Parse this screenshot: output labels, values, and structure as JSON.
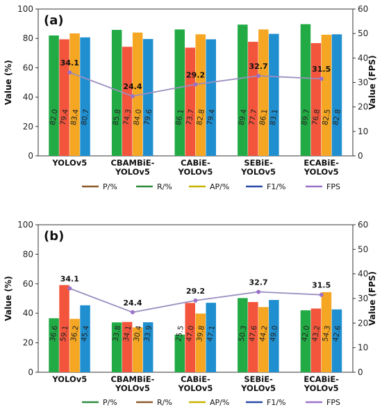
{
  "chart_data": [
    {
      "type": "bar",
      "panel_label": "(a)",
      "categories": [
        "YOLOv5",
        "CBAMBiE-YOLOv5",
        "CABiE-YOLOv5",
        "SEBiE-YOLOv5",
        "ECABiE-YOLOv5"
      ],
      "category_lines": [
        [
          "YOLOv5"
        ],
        [
          "CBAMBiE-",
          "YOLOv5"
        ],
        [
          "CABiE-",
          "YOLOv5"
        ],
        [
          "SEBiE-",
          "YOLOv5"
        ],
        [
          "ECABiE-",
          "YOLOv5"
        ]
      ],
      "series": [
        {
          "name": "P/%",
          "values": [
            82.0,
            85.8,
            86.1,
            89.4,
            89.7
          ]
        },
        {
          "name": "R/%",
          "values": [
            79.4,
            74.3,
            73.7,
            77.7,
            76.8
          ]
        },
        {
          "name": "AP/%",
          "values": [
            83.4,
            84.0,
            82.8,
            86.1,
            82.5
          ]
        },
        {
          "name": "F1/%",
          "values": [
            80.7,
            79.6,
            79.4,
            83.1,
            82.8
          ]
        }
      ],
      "bar_colors": [
        "#22aa44",
        "#f2553c",
        "#f5a623",
        "#1f8fd0"
      ],
      "legend": [
        {
          "name": "P/%",
          "color": "#8b5a2b"
        },
        {
          "name": "R/%",
          "color": "#2e8b3e"
        },
        {
          "name": "AP/%",
          "color": "#c8b400"
        },
        {
          "name": "F1/%",
          "color": "#2b4aa8"
        },
        {
          "name": "FPS",
          "color": "#9b72c8"
        }
      ],
      "fps": {
        "name": "FPS",
        "values": [
          34.1,
          24.4,
          29.2,
          32.7,
          31.5
        ]
      },
      "ylabel": "Value (%)",
      "y2label": "Value (FPS)",
      "ylim": [
        0,
        100
      ],
      "y2lim": [
        0,
        60
      ],
      "yticks": [
        "0",
        "20",
        "40",
        "60",
        "80",
        "100"
      ],
      "y2ticks": [
        "0",
        "10",
        "20",
        "30",
        "40",
        "50",
        "60"
      ],
      "legend_position": "bottom"
    },
    {
      "type": "bar",
      "panel_label": "(b)",
      "categories": [
        "YOLOv5",
        "CBAMBiE-YOLOv5",
        "CABiE-YOLOv5",
        "SEBiE-YOLOv5",
        "ECABiE-YOLOv5"
      ],
      "category_lines": [
        [
          "YOLOv5"
        ],
        [
          "CBAMBiE-",
          "YOLOv5"
        ],
        [
          "CABiE-",
          "YOLOv5"
        ],
        [
          "SEBiE-",
          "YOLOv5"
        ],
        [
          "ECABiE-",
          "YOLOv5"
        ]
      ],
      "series": [
        {
          "name": "P/%",
          "values": [
            36.6,
            33.8,
            25.5,
            50.3,
            42.0
          ]
        },
        {
          "name": "R/%",
          "values": [
            59.1,
            34.1,
            47.0,
            47.6,
            43.2
          ]
        },
        {
          "name": "AP/%",
          "values": [
            36.2,
            30.4,
            39.8,
            44.2,
            54.3
          ]
        },
        {
          "name": "F1/%",
          "values": [
            45.4,
            33.9,
            47.1,
            49.0,
            42.6
          ]
        }
      ],
      "bar_colors": [
        "#22aa44",
        "#f2553c",
        "#f5a623",
        "#1f8fd0"
      ],
      "legend": [
        {
          "name": "P/%",
          "color": "#2e8b3e"
        },
        {
          "name": "R/%",
          "color": "#8b5a2b"
        },
        {
          "name": "AP/%",
          "color": "#c8b400"
        },
        {
          "name": "F1/%",
          "color": "#2b4aa8"
        },
        {
          "name": "FPS",
          "color": "#9b72c8"
        }
      ],
      "fps": {
        "name": "FPS",
        "values": [
          34.1,
          24.4,
          29.2,
          32.7,
          31.5
        ]
      },
      "ylabel": "Value (%)",
      "y2label": "Value (FPS)",
      "ylim": [
        0,
        100
      ],
      "y2lim": [
        0,
        60
      ],
      "yticks": [
        "0",
        "20",
        "40",
        "60",
        "80",
        "100"
      ],
      "y2ticks": [
        "0",
        "10",
        "20",
        "30",
        "40",
        "50",
        "60"
      ],
      "legend_position": "bottom"
    }
  ],
  "colors": {
    "fps_line": "#9b8fc0",
    "fps_marker": "#9b72c8",
    "fps_label": "#c00040"
  }
}
